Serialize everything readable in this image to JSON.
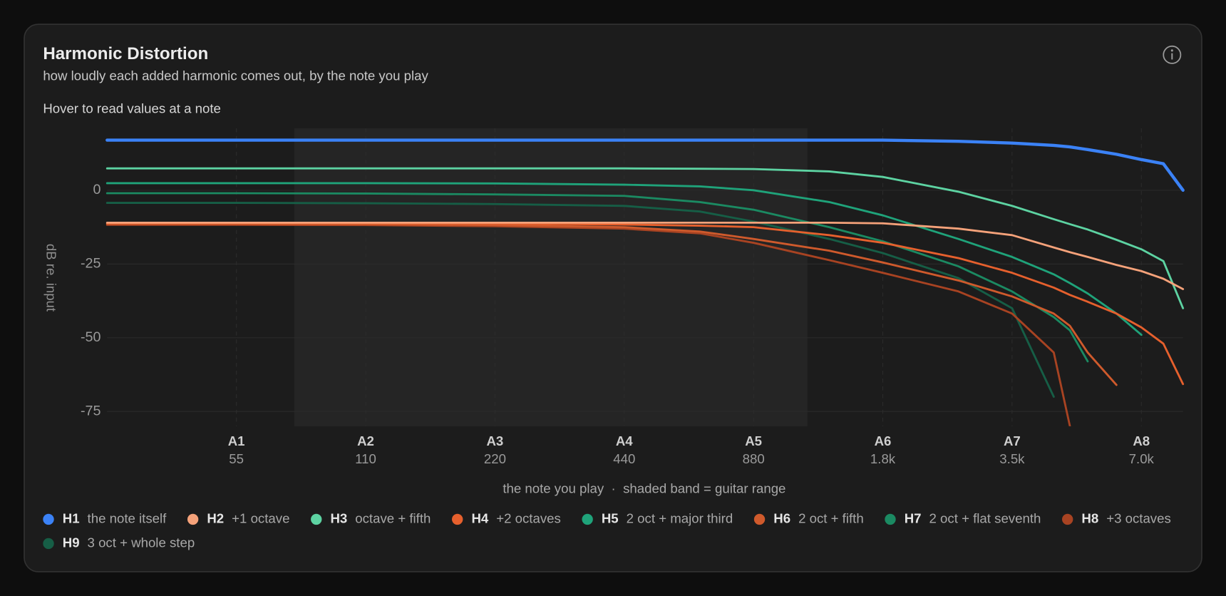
{
  "chart_data": {
    "type": "line",
    "title": "Harmonic Distortion",
    "subtitle": "how loudly each added harmonic comes out, by the note you play",
    "hint": "Hover to read values at a note",
    "y_label": "dB re. input",
    "x_label": "the note you play  ·  shaded band = guitar range",
    "x_scale": "log",
    "grid": true,
    "xlim": [
      27.5,
      8800
    ],
    "ylim": [
      -80,
      21
    ],
    "yticks": [
      0,
      -25,
      -50,
      -75
    ],
    "xticks": [
      {
        "value": 55,
        "label": "A1",
        "sublabel": "55"
      },
      {
        "value": 110,
        "label": "A2",
        "sublabel": "110"
      },
      {
        "value": 220,
        "label": "A3",
        "sublabel": "220"
      },
      {
        "value": 440,
        "label": "A4",
        "sublabel": "440"
      },
      {
        "value": 880,
        "label": "A5",
        "sublabel": "880"
      },
      {
        "value": 1760,
        "label": "A6",
        "sublabel": "1.8k"
      },
      {
        "value": 3520,
        "label": "A7",
        "sublabel": "3.5k"
      },
      {
        "value": 7040,
        "label": "A8",
        "sublabel": "7.0k"
      }
    ],
    "shaded_band": [
      75,
      1175
    ],
    "x": [
      27.5,
      55,
      110,
      220,
      440,
      660,
      880,
      1320,
      1760,
      2640,
      3520,
      4400,
      4800,
      5280,
      6160,
      7040,
      7920,
      8800
    ],
    "series": [
      {
        "name": "H1",
        "description": "the note itself",
        "color": "#3b82f6",
        "values": [
          17,
          17,
          17,
          17,
          17,
          17,
          17,
          17,
          17,
          16.6,
          16,
          15.2,
          14.7,
          13.8,
          12.2,
          10.4,
          9,
          0
        ]
      },
      {
        "name": "H2",
        "description": "+1 octave",
        "color": "#f5a27a",
        "values": [
          -11,
          -11,
          -11,
          -11,
          -11,
          -11,
          -11,
          -11,
          -11.2,
          -13,
          -15.2,
          -19.4,
          -21,
          -22.6,
          -25.3,
          -27.4,
          -30,
          -33.5
        ]
      },
      {
        "name": "H3",
        "description": "octave + fifth",
        "color": "#5dd3a2",
        "values": [
          7.4,
          7.4,
          7.4,
          7.4,
          7.4,
          7.3,
          7.2,
          6.4,
          4.5,
          -0.5,
          -5.3,
          -9.8,
          -11.5,
          -13.3,
          -16.8,
          -20,
          -24,
          -40
        ]
      },
      {
        "name": "H4",
        "description": "+2 octaves",
        "color": "#e6602d",
        "values": [
          -11.2,
          -11.2,
          -11.2,
          -11.3,
          -11.6,
          -12,
          -12.5,
          -15.2,
          -17.8,
          -23,
          -28,
          -33,
          -35.5,
          -37.8,
          -41.8,
          -46.5,
          -52,
          -65.7
        ]
      },
      {
        "name": "H5",
        "description": "2 oct + major third",
        "color": "#1fa37a",
        "values": [
          2.4,
          2.4,
          2.4,
          2.3,
          1.9,
          1.3,
          0,
          -4,
          -8.5,
          -16.5,
          -22.6,
          -28.5,
          -31.5,
          -35,
          -41.8,
          -49,
          null,
          null
        ]
      },
      {
        "name": "H6",
        "description": "2 oct + fifth",
        "color": "#cf5a2c",
        "values": [
          -11.4,
          -11.4,
          -11.5,
          -11.8,
          -12.5,
          -14,
          -16.5,
          -20.5,
          -24.5,
          -30.6,
          -36,
          -41.8,
          -46,
          -55,
          -66,
          null,
          null,
          null
        ]
      },
      {
        "name": "H7",
        "description": "2 oct + flat seventh",
        "color": "#1b8a62",
        "values": [
          -1,
          -1,
          -1.1,
          -1.4,
          -1.9,
          -4,
          -6.6,
          -12.5,
          -17.3,
          -25.8,
          -34.3,
          -43,
          -47.5,
          -58,
          null,
          null,
          null,
          null
        ]
      },
      {
        "name": "H8",
        "description": "+3 octaves",
        "color": "#a84322",
        "values": [
          -11.7,
          -11.7,
          -11.8,
          -12.2,
          -13,
          -14.6,
          -17.8,
          -23.7,
          -28,
          -34.3,
          -41.8,
          -55,
          -80,
          null,
          null,
          null,
          null,
          null
        ]
      },
      {
        "name": "H9",
        "description": "3 oct + whole step",
        "color": "#165e46",
        "values": [
          -4.3,
          -4.3,
          -4.4,
          -4.7,
          -5.3,
          -7.2,
          -10.6,
          -16.5,
          -21.3,
          -29.8,
          -40,
          -70,
          null,
          null,
          null,
          null,
          null,
          null
        ]
      }
    ]
  }
}
